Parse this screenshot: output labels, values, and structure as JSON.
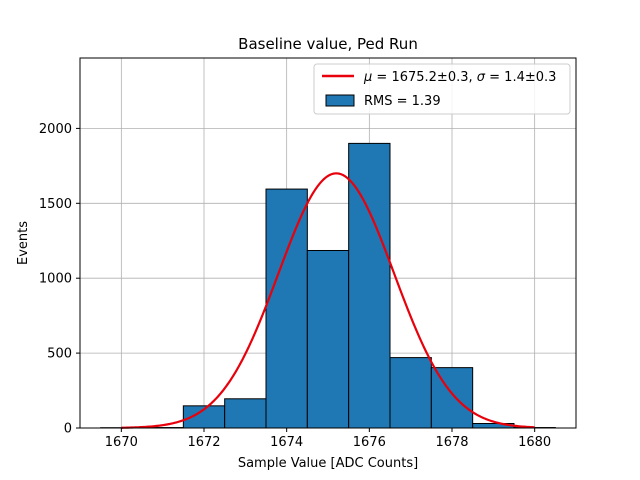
{
  "chart_data": {
    "type": "bar",
    "title": "Baseline value, Ped Run",
    "xlabel": "Sample Value [ADC Counts]",
    "ylabel": "Events",
    "xlim": [
      1669,
      1681
    ],
    "ylim": [
      0,
      2470
    ],
    "xticks": [
      1670,
      1672,
      1674,
      1676,
      1678,
      1680
    ],
    "yticks": [
      0,
      500,
      1000,
      1500,
      2000
    ],
    "grid": true,
    "legend_position": "top-right",
    "histogram": {
      "name": "RMS = 1.39",
      "color": "#1f77b4",
      "bins": [
        {
          "x0": 1669.5,
          "x1": 1670.5,
          "value": 2
        },
        {
          "x0": 1670.5,
          "x1": 1671.5,
          "value": 3
        },
        {
          "x0": 1671.5,
          "x1": 1672.5,
          "value": 148
        },
        {
          "x0": 1672.5,
          "x1": 1673.5,
          "value": 195
        },
        {
          "x0": 1673.5,
          "x1": 1674.5,
          "value": 1595
        },
        {
          "x0": 1674.5,
          "x1": 1675.5,
          "value": 1185
        },
        {
          "x0": 1675.5,
          "x1": 1676.5,
          "value": 1900
        },
        {
          "x0": 1676.5,
          "x1": 1677.5,
          "value": 470
        },
        {
          "x0": 1677.5,
          "x1": 1678.5,
          "value": 403
        },
        {
          "x0": 1678.5,
          "x1": 1679.5,
          "value": 30
        },
        {
          "x0": 1679.5,
          "x1": 1680.5,
          "value": 3
        }
      ]
    },
    "fit": {
      "name_html": "<tspan font-style=\"italic\">μ</tspan> = 1675.2±0.3, <tspan font-style=\"italic\">σ</tspan> = 1.4±0.3",
      "color": "#e8000b",
      "mu": 1675.2,
      "sigma": 1.4,
      "amplitude": 1700,
      "x_range": [
        1670,
        1680
      ]
    }
  }
}
